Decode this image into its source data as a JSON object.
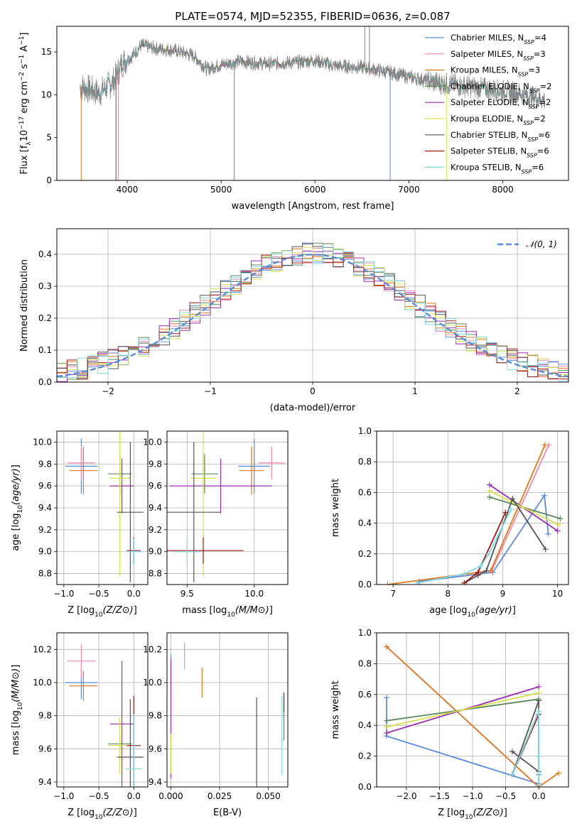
{
  "figure_title": "PLATE=0574, MJD=52355, FIBERID=0636, z=0.087",
  "colors": {
    "chabrier_miles": "#5b8bd8",
    "salpeter_miles": "#f08ab0",
    "kroupa_miles": "#e07820",
    "chabrier_elodie": "#5a8a5a",
    "salpeter_elodie": "#9a2fb0",
    "kroupa_elodie": "#d6e04a",
    "chabrier_stelib": "#555555",
    "salpeter_stelib": "#a01818",
    "kroupa_stelib": "#80d8e0",
    "data_spectrum": "#808080",
    "gaussian": "#5b8bd8",
    "grid": "#b0b0b0"
  },
  "chart_data": [
    {
      "type": "line",
      "panel": "spectrum",
      "title": "PLATE=0574, MJD=52355, FIBERID=0636, z=0.087",
      "xlabel": "wavelength [Angstrom, rest frame]",
      "ylabel_parts": [
        "Flux [f",
        "λ",
        "10",
        "−17",
        " erg cm",
        "−2",
        " s",
        "−1",
        " A",
        "−1",
        "]"
      ],
      "xlim": [
        3250,
        8700
      ],
      "ylim": [
        0,
        18
      ],
      "xticks": [
        "4000",
        "5000",
        "6000",
        "7000",
        "8000"
      ],
      "yticks": [
        "0",
        "5",
        "10",
        "15"
      ],
      "grid": false,
      "legend_position": "top-right",
      "legend": [
        {
          "name": "Chabrier MILES",
          "n_label": "N",
          "n_sub": "SSP",
          "n_value": "=4",
          "color_key": "chabrier_miles"
        },
        {
          "name": "Salpeter MILES",
          "n_label": "N",
          "n_sub": "SSP",
          "n_value": "=3",
          "color_key": "salpeter_miles"
        },
        {
          "name": "Kroupa MILES",
          "n_label": "N",
          "n_sub": "SSP",
          "n_value": "=3",
          "color_key": "kroupa_miles"
        },
        {
          "name": "Chabrier ELODIE",
          "n_label": "N",
          "n_sub": "SSP",
          "n_value": "=2",
          "color_key": "chabrier_elodie"
        },
        {
          "name": "Salpeter ELODIE",
          "n_label": "N",
          "n_sub": "SSP",
          "n_value": "=2",
          "color_key": "salpeter_elodie"
        },
        {
          "name": "Kroupa ELODIE",
          "n_label": "N",
          "n_sub": "SSP",
          "n_value": "=2",
          "color_key": "kroupa_elodie"
        },
        {
          "name": "Chabrier STELIB",
          "n_label": "N",
          "n_sub": "SSP",
          "n_value": "=6",
          "color_key": "chabrier_stelib"
        },
        {
          "name": "Salpeter STELIB",
          "n_label": "N",
          "n_sub": "SSP",
          "n_value": "=6",
          "color_key": "salpeter_stelib"
        },
        {
          "name": "Kroupa STELIB",
          "n_label": "N",
          "n_sub": "SSP",
          "n_value": "=6",
          "color_key": "kroupa_stelib"
        }
      ],
      "continuum_points": [
        [
          3500,
          11.0
        ],
        [
          3700,
          10.2
        ],
        [
          3850,
          11.5
        ],
        [
          3950,
          13.8
        ],
        [
          4050,
          14.5
        ],
        [
          4150,
          15.8
        ],
        [
          4300,
          15.4
        ],
        [
          4500,
          15.2
        ],
        [
          4700,
          14.6
        ],
        [
          4850,
          13.0
        ],
        [
          5000,
          13.5
        ],
        [
          5200,
          13.9
        ],
        [
          5500,
          13.6
        ],
        [
          5800,
          13.8
        ],
        [
          6000,
          14.0
        ],
        [
          6200,
          13.4
        ],
        [
          6500,
          13.2
        ],
        [
          6800,
          12.6
        ],
        [
          7000,
          12.1
        ],
        [
          7300,
          11.4
        ],
        [
          7600,
          11.0
        ],
        [
          7900,
          10.6
        ],
        [
          8200,
          10.1
        ],
        [
          8450,
          9.4
        ]
      ],
      "spectrum_noise_amplitude": 1.0,
      "spikes": [
        [
          5140,
          0
        ],
        [
          6530,
          18
        ],
        [
          6580,
          18
        ],
        [
          6730,
          13
        ]
      ],
      "model_dropouts": [
        [
          3510,
          0
        ],
        [
          3880,
          0
        ],
        [
          3905,
          0
        ],
        [
          7400,
          0
        ],
        [
          6800,
          0
        ]
      ]
    },
    {
      "type": "step",
      "panel": "residual_histogram",
      "xlabel": "(data-model)/error",
      "ylabel": "Normed distribution",
      "xlim": [
        -2.5,
        2.5
      ],
      "ylim": [
        0,
        0.48
      ],
      "xticks": [
        "−2",
        "−1",
        "0",
        "1",
        "2"
      ],
      "yticks": [
        "0.0",
        "0.1",
        "0.2",
        "0.3",
        "0.4"
      ],
      "grid": true,
      "legend_position": "top-right",
      "bin_width": 0.1,
      "gaussian_label": "𝒩(0, 1)",
      "gaussian_mean": 0,
      "gaussian_sigma": 1,
      "jitter_seeds": [
        1,
        2,
        3,
        4,
        5,
        6,
        7,
        8,
        9
      ]
    },
    {
      "type": "errorbar",
      "panel": "age_vs_Z",
      "xlabel": "Z [log10(Z/Z⊙)]",
      "ylabel": "age  [log10(age/yr)]",
      "xlim": [
        -1.1,
        0.2
      ],
      "ylim": [
        8.7,
        10.1
      ],
      "xticks": [
        "−1.0",
        "−0.5",
        "0.0"
      ],
      "yticks": [
        "8.8",
        "9.0",
        "9.2",
        "9.4",
        "9.6",
        "9.8",
        "10.0"
      ],
      "points": [
        {
          "x": -0.75,
          "xerr": 0.23,
          "y": 9.78,
          "yerr": 0.25,
          "color_key": "chabrier_miles"
        },
        {
          "x": -0.75,
          "xerr": 0.2,
          "y": 9.81,
          "yerr": 0.15,
          "color_key": "salpeter_miles"
        },
        {
          "x": -0.72,
          "xerr": 0.2,
          "y": 9.74,
          "yerr": 0.22,
          "color_key": "kroupa_miles"
        },
        {
          "x": -0.2,
          "xerr": 0.17,
          "y": 9.71,
          "yerr": 0.18,
          "color_key": "chabrier_elodie"
        },
        {
          "x": -0.17,
          "xerr": 0.17,
          "y": 9.6,
          "yerr": 0.25,
          "color_key": "salpeter_elodie"
        },
        {
          "x": -0.2,
          "xerr": 0.15,
          "y": 9.67,
          "yerr": 0.9,
          "color_key": "kroupa_elodie"
        },
        {
          "x": -0.05,
          "xerr": 0.19,
          "y": 9.36,
          "yerr": 0.64,
          "color_key": "chabrier_stelib"
        },
        {
          "x": 0.0,
          "xerr": 0.1,
          "y": 9.01,
          "yerr": 0.12,
          "color_key": "salpeter_stelib"
        },
        {
          "x": 0.0,
          "xerr": 0.12,
          "y": 9.0,
          "yerr": 0.12,
          "color_key": "kroupa_stelib"
        }
      ]
    },
    {
      "type": "errorbar",
      "panel": "age_vs_mass",
      "xlabel": "mass [log10(M/M⊙)]",
      "ylabel": "",
      "xlim": [
        9.35,
        10.25
      ],
      "ylim": [
        8.7,
        10.1
      ],
      "xticks": [
        "9.5",
        "10.0"
      ],
      "yticks": [
        "8.8",
        "9.0",
        "9.2",
        "9.4",
        "9.6",
        "9.8",
        "10.0"
      ],
      "points": [
        {
          "x": 10.0,
          "xerr": 0.12,
          "y": 9.78,
          "yerr": 0.25,
          "color_key": "chabrier_miles"
        },
        {
          "x": 10.13,
          "xerr": 0.1,
          "y": 9.81,
          "yerr": 0.15,
          "color_key": "salpeter_miles"
        },
        {
          "x": 9.98,
          "xerr": 0.09,
          "y": 9.74,
          "yerr": 0.22,
          "color_key": "kroupa_miles"
        },
        {
          "x": 9.63,
          "xerr": 0.1,
          "y": 9.71,
          "yerr": 0.18,
          "color_key": "chabrier_elodie"
        },
        {
          "x": 9.75,
          "xerr": 0.38,
          "y": 9.6,
          "yerr": 0.25,
          "color_key": "salpeter_elodie"
        },
        {
          "x": 9.62,
          "xerr": 0.1,
          "y": 9.67,
          "yerr": 0.9,
          "color_key": "kroupa_elodie"
        },
        {
          "x": 9.55,
          "xerr": 0.2,
          "y": 9.36,
          "yerr": 0.64,
          "color_key": "chabrier_stelib"
        },
        {
          "x": 9.62,
          "xerr": 0.3,
          "y": 9.01,
          "yerr": 0.12,
          "color_key": "salpeter_stelib"
        },
        {
          "x": 9.5,
          "xerr": 0.1,
          "y": 9.0,
          "yerr": 0.12,
          "color_key": "kroupa_stelib"
        }
      ]
    },
    {
      "type": "line",
      "panel": "weight_vs_age",
      "xlabel": "age  [log10(age/yr)]",
      "ylabel": "mass weight",
      "xlim": [
        6.7,
        10.2
      ],
      "ylim": [
        0,
        1.0
      ],
      "xticks": [
        "7",
        "8",
        "9",
        "10"
      ],
      "yticks": [
        "0.0",
        "0.2",
        "0.4",
        "0.6",
        "0.8",
        "1.0"
      ],
      "series": [
        {
          "color_key": "chabrier_miles",
          "x": [
            7.48,
            8.82,
            9.76,
            9.83
          ],
          "y": [
            0.02,
            0.08,
            0.58,
            0.33
          ]
        },
        {
          "color_key": "salpeter_miles",
          "x": [
            8.8,
            9.84
          ],
          "y": [
            0.09,
            0.91
          ]
        },
        {
          "color_key": "kroupa_miles",
          "x": [
            6.9,
            8.78,
            9.77
          ],
          "y": [
            0.0,
            0.09,
            0.91
          ]
        },
        {
          "color_key": "chabrier_elodie",
          "x": [
            8.76,
            10.05
          ],
          "y": [
            0.57,
            0.43
          ]
        },
        {
          "color_key": "salpeter_elodie",
          "x": [
            8.76,
            10.0
          ],
          "y": [
            0.65,
            0.35
          ]
        },
        {
          "color_key": "kroupa_elodie",
          "x": [
            8.76,
            10.02
          ],
          "y": [
            0.61,
            0.39
          ]
        },
        {
          "color_key": "chabrier_stelib",
          "x": [
            8.3,
            8.55,
            8.7,
            9.18,
            9.78
          ],
          "y": [
            0.01,
            0.06,
            0.09,
            0.56,
            0.23
          ]
        },
        {
          "color_key": "salpeter_stelib",
          "x": [
            8.3,
            8.55,
            9.05
          ],
          "y": [
            0.01,
            0.08,
            0.47
          ]
        },
        {
          "color_key": "kroupa_stelib",
          "x": [
            7.45,
            8.3,
            8.6,
            8.75,
            9.15
          ],
          "y": [
            0.01,
            0.07,
            0.12,
            0.2,
            0.49
          ]
        }
      ]
    },
    {
      "type": "errorbar",
      "panel": "mass_vs_Z",
      "xlabel": "Z [log10(Z/Z⊙)]",
      "ylabel": "mass [log10(M/M⊙)]",
      "xlim": [
        -1.1,
        0.2
      ],
      "ylim": [
        9.37,
        10.3
      ],
      "xticks": [
        "−1.0",
        "−0.5",
        "0.0"
      ],
      "yticks": [
        "9.4",
        "9.6",
        "9.8",
        "10.0",
        "10.2"
      ],
      "points": [
        {
          "x": -0.75,
          "xerr": 0.23,
          "y": 10.0,
          "yerr": 0.1,
          "color_key": "chabrier_miles"
        },
        {
          "x": -0.75,
          "xerr": 0.2,
          "y": 10.13,
          "yerr": 0.1,
          "color_key": "salpeter_miles"
        },
        {
          "x": -0.72,
          "xerr": 0.2,
          "y": 9.98,
          "yerr": 0.09,
          "color_key": "kroupa_miles"
        },
        {
          "x": -0.2,
          "xerr": 0.17,
          "y": 9.63,
          "yerr": 0.05,
          "color_key": "chabrier_elodie"
        },
        {
          "x": -0.17,
          "xerr": 0.17,
          "y": 9.75,
          "yerr": 0.38,
          "color_key": "salpeter_elodie"
        },
        {
          "x": -0.2,
          "xerr": 0.15,
          "y": 9.62,
          "yerr": 0.17,
          "color_key": "kroupa_elodie"
        },
        {
          "x": -0.05,
          "xerr": 0.19,
          "y": 9.55,
          "yerr": 0.35,
          "color_key": "chabrier_stelib"
        },
        {
          "x": 0.0,
          "xerr": 0.1,
          "y": 9.62,
          "yerr": 0.3,
          "color_key": "salpeter_stelib"
        },
        {
          "x": 0.0,
          "xerr": 0.12,
          "y": 9.48,
          "yerr": 0.33,
          "color_key": "kroupa_stelib"
        }
      ]
    },
    {
      "type": "errorbar",
      "panel": "mass_vs_ebv",
      "xlabel": "E(B-V)",
      "ylabel": "",
      "xlim": [
        -0.002,
        0.06
      ],
      "ylim": [
        9.37,
        10.3
      ],
      "xticks": [
        "0.000",
        "0.025",
        "0.050"
      ],
      "yticks": [
        "9.4",
        "9.6",
        "9.8",
        "10.0",
        "10.2"
      ],
      "points": [
        {
          "x": 0.0,
          "xerr": 0,
          "y": 10.05,
          "yerr": 0.12,
          "color_key": "chabrier_miles"
        },
        {
          "x": 0.007,
          "xerr": 0,
          "y": 10.16,
          "yerr": 0.08,
          "color_key": "salpeter_miles"
        },
        {
          "x": 0.016,
          "xerr": 0,
          "y": 10.0,
          "yerr": 0.09,
          "color_key": "kroupa_miles"
        },
        {
          "x": 0.058,
          "xerr": 0,
          "y": 9.77,
          "yerr": 0.12,
          "color_key": "chabrier_elodie"
        },
        {
          "x": 0.0,
          "xerr": 0,
          "y": 9.78,
          "yerr": 0.36,
          "color_key": "salpeter_elodie"
        },
        {
          "x": 0.0,
          "xerr": 0,
          "y": 9.57,
          "yerr": 0.12,
          "color_key": "kroupa_elodie"
        },
        {
          "x": 0.044,
          "xerr": 0,
          "y": 9.62,
          "yerr": 0.29,
          "color_key": "chabrier_stelib"
        },
        {
          "x": 0.058,
          "xerr": 0,
          "y": 9.88,
          "yerr": 0.06,
          "color_key": "salpeter_stelib"
        },
        {
          "x": 0.057,
          "xerr": 0,
          "y": 9.68,
          "yerr": 0.24,
          "color_key": "kroupa_stelib"
        }
      ]
    },
    {
      "type": "line",
      "panel": "weight_vs_Z",
      "xlabel": "Z [log10(Z/Z⊙)]",
      "ylabel": "mass weight",
      "xlim": [
        -2.45,
        0.45
      ],
      "ylim": [
        0,
        1.0
      ],
      "xticks": [
        "−2.0",
        "−1.5",
        "−1.0",
        "−0.5",
        "0.0"
      ],
      "yticks": [
        "0.0",
        "0.2",
        "0.4",
        "0.6",
        "0.8",
        "1.0"
      ],
      "series": [
        {
          "color_key": "chabrier_miles",
          "x": [
            -2.3,
            -2.3,
            0.0,
            0.0
          ],
          "y": [
            0.58,
            0.33,
            0.02,
            0.08
          ]
        },
        {
          "color_key": "salpeter_miles",
          "x": [
            -2.3,
            0.0
          ],
          "y": [
            0.91,
            0.0
          ]
        },
        {
          "color_key": "kroupa_miles",
          "x": [
            -2.3,
            0.0,
            0.3
          ],
          "y": [
            0.91,
            0.0,
            0.09
          ]
        },
        {
          "color_key": "chabrier_elodie",
          "x": [
            -2.3,
            0.0
          ],
          "y": [
            0.43,
            0.57
          ]
        },
        {
          "color_key": "salpeter_elodie",
          "x": [
            -2.3,
            0.0
          ],
          "y": [
            0.35,
            0.65
          ]
        },
        {
          "color_key": "kroupa_elodie",
          "x": [
            -2.3,
            0.0
          ],
          "y": [
            0.39,
            0.61
          ]
        },
        {
          "color_key": "chabrier_stelib",
          "x": [
            -0.4,
            0.0,
            0.0,
            -0.4
          ],
          "y": [
            0.08,
            0.56,
            0.1,
            0.23
          ]
        },
        {
          "color_key": "salpeter_stelib",
          "x": [
            -0.4,
            0.0
          ],
          "y": [
            0.08,
            0.47
          ]
        },
        {
          "color_key": "kroupa_stelib",
          "x": [
            -0.4,
            0.0,
            0.0,
            0.0
          ],
          "y": [
            0.08,
            0.49,
            0.2,
            0.01
          ]
        }
      ]
    }
  ]
}
